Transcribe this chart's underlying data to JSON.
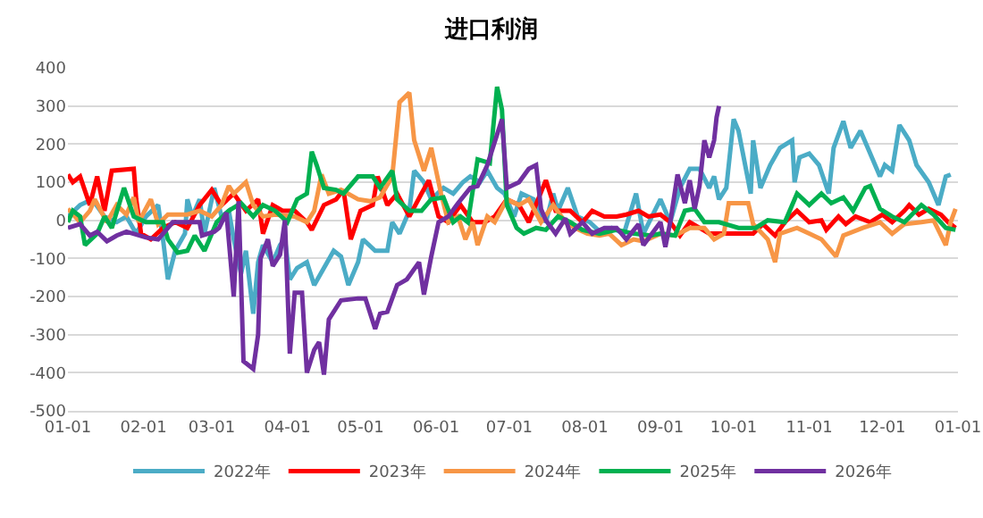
{
  "chart_data": {
    "type": "line",
    "title": "进口利润",
    "xlim": [
      "2021-01-01",
      "2022-01-01"
    ],
    "xticks": [
      {
        "value": "2021-01-01",
        "label": "01-01"
      },
      {
        "value": "2021-02-01",
        "label": "02-01"
      },
      {
        "value": "2021-03-01",
        "label": "03-01"
      },
      {
        "value": "2021-04-01",
        "label": "04-01"
      },
      {
        "value": "2021-05-01",
        "label": "05-01"
      },
      {
        "value": "2021-06-01",
        "label": "06-01"
      },
      {
        "value": "2021-07-01",
        "label": "07-01"
      },
      {
        "value": "2021-08-01",
        "label": "08-01"
      },
      {
        "value": "2021-09-01",
        "label": "09-01"
      },
      {
        "value": "2021-10-01",
        "label": "10-01"
      },
      {
        "value": "2021-11-01",
        "label": "11-01"
      },
      {
        "value": "2021-12-01",
        "label": "12-01"
      },
      {
        "value": "2022-01-01",
        "label": "01-01"
      }
    ],
    "ylim": [
      -500,
      400
    ],
    "yticks": [
      -500,
      -400,
      -300,
      -200,
      -100,
      0,
      100,
      200,
      300,
      400
    ],
    "grid": "y",
    "legend": "bottom",
    "marker": "none",
    "line_style": "solid",
    "series": [
      {
        "name": "2022年",
        "color": "#4bacc6",
        "x": [
          "2021-01-01",
          "2021-01-06",
          "2021-01-11",
          "2021-01-16",
          "2021-01-21",
          "2021-01-25",
          "2021-01-29",
          "2021-02-02",
          "2021-02-07",
          "2021-02-09",
          "2021-02-11",
          "2021-02-14",
          "2021-02-18",
          "2021-02-19",
          "2021-02-21",
          "2021-02-24",
          "2021-02-26",
          "2021-03-02",
          "2021-03-05",
          "2021-03-08",
          "2021-03-10",
          "2021-03-13",
          "2021-03-15",
          "2021-03-18",
          "2021-03-20",
          "2021-03-22",
          "2021-03-26",
          "2021-03-29",
          "2021-03-31",
          "2021-04-02",
          "2021-04-05",
          "2021-04-09",
          "2021-04-12",
          "2021-04-16",
          "2021-04-20",
          "2021-04-23",
          "2021-04-26",
          "2021-04-30",
          "2021-05-02",
          "2021-05-07",
          "2021-05-12",
          "2021-05-14",
          "2021-05-17",
          "2021-05-21",
          "2021-05-23",
          "2021-05-27",
          "2021-05-30",
          "2021-06-04",
          "2021-06-08",
          "2021-06-12",
          "2021-06-15",
          "2021-06-19",
          "2021-06-22",
          "2021-06-26",
          "2021-06-29",
          "2021-07-03",
          "2021-07-06",
          "2021-07-11",
          "2021-07-16",
          "2021-07-19",
          "2021-07-21",
          "2021-07-25",
          "2021-07-29",
          "2021-08-03",
          "2021-08-08",
          "2021-08-12",
          "2021-08-17",
          "2021-08-22",
          "2021-08-25",
          "2021-09-01",
          "2021-09-05",
          "2021-09-09",
          "2021-09-13",
          "2021-09-17",
          "2021-09-21",
          "2021-09-23",
          "2021-09-25",
          "2021-09-28",
          "2021-10-01",
          "2021-10-03",
          "2021-10-08",
          "2021-10-09",
          "2021-10-12",
          "2021-10-16",
          "2021-10-20",
          "2021-10-25",
          "2021-10-26",
          "2021-10-28",
          "2021-11-01",
          "2021-11-05",
          "2021-11-09",
          "2021-11-11",
          "2021-11-15",
          "2021-11-18",
          "2021-11-22",
          "2021-11-25",
          "2021-11-30",
          "2021-12-02",
          "2021-12-05",
          "2021-12-08",
          "2021-12-12",
          "2021-12-15",
          "2021-12-20",
          "2021-12-24",
          "2021-12-27",
          "2021-12-29"
        ],
        "values": [
          10,
          40,
          55,
          10,
          -5,
          10,
          -35,
          10,
          40,
          -50,
          -155,
          -80,
          -35,
          55,
          10,
          55,
          -35,
          85,
          10,
          25,
          -50,
          -140,
          -80,
          -245,
          -110,
          -65,
          -110,
          -65,
          -50,
          -155,
          -125,
          -110,
          -170,
          -125,
          -80,
          -95,
          -170,
          -110,
          -50,
          -80,
          -80,
          -5,
          -35,
          25,
          130,
          100,
          55,
          85,
          70,
          100,
          115,
          100,
          130,
          85,
          70,
          10,
          70,
          55,
          -5,
          70,
          25,
          85,
          10,
          -5,
          -35,
          -20,
          -35,
          70,
          -35,
          55,
          -5,
          85,
          135,
          135,
          85,
          115,
          55,
          85,
          265,
          235,
          70,
          210,
          85,
          145,
          190,
          210,
          100,
          165,
          175,
          145,
          70,
          190,
          260,
          190,
          235,
          190,
          115,
          145,
          130,
          250,
          210,
          145,
          100,
          40,
          115,
          120
        ]
      },
      {
        "name": "2023年",
        "color": "#ff0000",
        "x": [
          "2021-01-01",
          "2021-01-03",
          "2021-01-06",
          "2021-01-10",
          "2021-01-13",
          "2021-01-16",
          "2021-01-19",
          "2021-01-28",
          "2021-01-29",
          "2021-01-31",
          "2021-02-04",
          "2021-02-09",
          "2021-02-14",
          "2021-02-19",
          "2021-02-24",
          "2021-03-01",
          "2021-03-05",
          "2021-03-10",
          "2021-03-15",
          "2021-03-20",
          "2021-03-22",
          "2021-03-26",
          "2021-03-30",
          "2021-04-04",
          "2021-04-09",
          "2021-04-11",
          "2021-04-16",
          "2021-04-21",
          "2021-04-24",
          "2021-04-27",
          "2021-05-01",
          "2021-05-06",
          "2021-05-08",
          "2021-05-12",
          "2021-05-16",
          "2021-05-21",
          "2021-05-26",
          "2021-05-29",
          "2021-06-02",
          "2021-06-06",
          "2021-06-11",
          "2021-06-16",
          "2021-06-21",
          "2021-06-25",
          "2021-06-30",
          "2021-07-05",
          "2021-07-09",
          "2021-07-16",
          "2021-07-20",
          "2021-07-26",
          "2021-07-31",
          "2021-08-04",
          "2021-08-09",
          "2021-08-14",
          "2021-08-18",
          "2021-08-23",
          "2021-08-27",
          "2021-09-01",
          "2021-09-05",
          "2021-09-09",
          "2021-09-13",
          "2021-09-17",
          "2021-09-21",
          "2021-09-27",
          "2021-10-03",
          "2021-10-09",
          "2021-10-13",
          "2021-10-18",
          "2021-10-22",
          "2021-10-27",
          "2021-11-01",
          "2021-11-06",
          "2021-11-08",
          "2021-11-13",
          "2021-11-16",
          "2021-11-20",
          "2021-11-26",
          "2021-12-01",
          "2021-12-05",
          "2021-12-10",
          "2021-12-12",
          "2021-12-16",
          "2021-12-20",
          "2021-12-25",
          "2021-12-28",
          "2021-12-31"
        ],
        "values": [
          120,
          100,
          115,
          40,
          115,
          25,
          130,
          135,
          55,
          -35,
          -50,
          -20,
          -5,
          -20,
          40,
          80,
          40,
          70,
          25,
          55,
          -35,
          40,
          25,
          25,
          -5,
          -25,
          40,
          55,
          80,
          -50,
          25,
          40,
          115,
          40,
          70,
          10,
          70,
          105,
          10,
          -5,
          40,
          -5,
          -5,
          10,
          55,
          40,
          -5,
          105,
          25,
          25,
          -5,
          25,
          10,
          10,
          15,
          25,
          10,
          15,
          -5,
          -40,
          -5,
          -20,
          -35,
          -35,
          -35,
          -35,
          -10,
          -40,
          -5,
          25,
          -5,
          0,
          -25,
          10,
          -10,
          10,
          -5,
          15,
          -5,
          25,
          40,
          15,
          30,
          15,
          -5,
          -20
        ]
      },
      {
        "name": "2024年",
        "color": "#f79646",
        "x": [
          "2021-01-01",
          "2021-01-06",
          "2021-01-10",
          "2021-01-12",
          "2021-01-17",
          "2021-01-21",
          "2021-01-25",
          "2021-01-28",
          "2021-01-30",
          "2021-02-04",
          "2021-02-07",
          "2021-02-11",
          "2021-02-19",
          "2021-02-24",
          "2021-03-01",
          "2021-03-05",
          "2021-03-08",
          "2021-03-10",
          "2021-03-15",
          "2021-03-18",
          "2021-03-22",
          "2021-03-27",
          "2021-04-04",
          "2021-04-09",
          "2021-04-12",
          "2021-04-15",
          "2021-04-18",
          "2021-04-23",
          "2021-04-30",
          "2021-05-05",
          "2021-05-09",
          "2021-05-14",
          "2021-05-17",
          "2021-05-21",
          "2021-05-23",
          "2021-05-27",
          "2021-05-30",
          "2021-06-03",
          "2021-06-06",
          "2021-06-10",
          "2021-06-13",
          "2021-06-16",
          "2021-06-18",
          "2021-06-22",
          "2021-06-25",
          "2021-06-30",
          "2021-07-05",
          "2021-07-09",
          "2021-07-14",
          "2021-07-19",
          "2021-07-24",
          "2021-07-28",
          "2021-08-02",
          "2021-08-07",
          "2021-08-11",
          "2021-08-16",
          "2021-08-21",
          "2021-08-25",
          "2021-09-01",
          "2021-09-07",
          "2021-09-13",
          "2021-09-19",
          "2021-09-23",
          "2021-09-27",
          "2021-09-29",
          "2021-10-07",
          "2021-10-09",
          "2021-10-15",
          "2021-10-18",
          "2021-10-20",
          "2021-10-27",
          "2021-11-01",
          "2021-11-06",
          "2021-11-12",
          "2021-11-15",
          "2021-11-23",
          "2021-11-30",
          "2021-12-05",
          "2021-12-10",
          "2021-12-17",
          "2021-12-22",
          "2021-12-27",
          "2021-12-29",
          "2021-12-31"
        ],
        "values": [
          30,
          -5,
          25,
          55,
          -5,
          40,
          15,
          60,
          -5,
          55,
          -10,
          15,
          15,
          25,
          10,
          40,
          90,
          70,
          100,
          40,
          10,
          15,
          10,
          -5,
          25,
          120,
          70,
          80,
          55,
          50,
          60,
          115,
          310,
          335,
          210,
          130,
          190,
          70,
          -5,
          10,
          -50,
          -5,
          -65,
          10,
          -5,
          55,
          40,
          55,
          -5,
          40,
          -5,
          -20,
          -35,
          -40,
          -35,
          -65,
          -50,
          -55,
          -35,
          -40,
          -20,
          -20,
          -50,
          -35,
          45,
          45,
          -10,
          -50,
          -110,
          -35,
          -20,
          -35,
          -50,
          -95,
          -40,
          -20,
          -5,
          -35,
          -10,
          -5,
          0,
          -65,
          -5,
          30
        ]
      },
      {
        "name": "2025年",
        "color": "#00b050",
        "x": [
          "2021-01-01",
          "2021-01-03",
          "2021-01-06",
          "2021-01-08",
          "2021-01-13",
          "2021-01-16",
          "2021-01-19",
          "2021-01-24",
          "2021-01-28",
          "2021-02-02",
          "2021-02-09",
          "2021-02-11",
          "2021-02-15",
          "2021-02-19",
          "2021-02-22",
          "2021-02-26",
          "2021-03-03",
          "2021-03-08",
          "2021-03-13",
          "2021-03-18",
          "2021-03-22",
          "2021-03-27",
          "2021-04-01",
          "2021-04-05",
          "2021-04-09",
          "2021-04-11",
          "2021-04-13",
          "2021-04-16",
          "2021-04-21",
          "2021-04-24",
          "2021-04-30",
          "2021-05-06",
          "2021-05-09",
          "2021-05-14",
          "2021-05-16",
          "2021-05-21",
          "2021-05-26",
          "2021-05-30",
          "2021-06-04",
          "2021-06-08",
          "2021-06-11",
          "2021-06-14",
          "2021-06-18",
          "2021-06-23",
          "2021-06-26",
          "2021-06-28",
          "2021-06-30",
          "2021-07-04",
          "2021-07-07",
          "2021-07-12",
          "2021-07-16",
          "2021-07-21",
          "2021-07-26",
          "2021-07-31",
          "2021-08-07",
          "2021-08-14",
          "2021-08-21",
          "2021-08-28",
          "2021-09-01",
          "2021-09-07",
          "2021-09-11",
          "2021-09-15",
          "2021-09-19",
          "2021-09-25",
          "2021-10-03",
          "2021-10-10",
          "2021-10-15",
          "2021-10-22",
          "2021-10-27",
          "2021-11-01",
          "2021-11-06",
          "2021-11-10",
          "2021-11-15",
          "2021-11-19",
          "2021-11-24",
          "2021-11-26",
          "2021-11-30",
          "2021-12-05",
          "2021-12-10",
          "2021-12-17",
          "2021-12-22",
          "2021-12-27",
          "2021-12-31"
        ],
        "values": [
          -5,
          25,
          10,
          -65,
          -35,
          10,
          -20,
          85,
          10,
          -5,
          -5,
          -50,
          -85,
          -80,
          -40,
          -80,
          -5,
          25,
          45,
          10,
          40,
          25,
          -5,
          55,
          70,
          180,
          145,
          85,
          80,
          70,
          115,
          115,
          85,
          130,
          55,
          25,
          25,
          55,
          60,
          -5,
          10,
          -5,
          160,
          150,
          350,
          290,
          40,
          -20,
          -35,
          -20,
          -25,
          10,
          -5,
          -25,
          -35,
          -25,
          -35,
          -40,
          -35,
          -40,
          25,
          30,
          -5,
          -5,
          -20,
          -20,
          0,
          -5,
          70,
          40,
          70,
          45,
          60,
          25,
          85,
          90,
          30,
          10,
          -5,
          40,
          15,
          -20,
          -25
        ]
      },
      {
        "name": "2026年",
        "color": "#7030a0",
        "x": [
          "2021-01-01",
          "2021-01-06",
          "2021-01-10",
          "2021-01-13",
          "2021-01-17",
          "2021-01-21",
          "2021-01-25",
          "2021-02-02",
          "2021-02-07",
          "2021-02-13",
          "2021-02-24",
          "2021-02-25",
          "2021-03-02",
          "2021-03-04",
          "2021-03-07",
          "2021-03-10",
          "2021-03-12",
          "2021-03-14",
          "2021-03-18",
          "2021-03-20",
          "2021-03-21",
          "2021-03-24",
          "2021-03-26",
          "2021-03-29",
          "2021-03-31",
          "2021-04-02",
          "2021-04-04",
          "2021-04-07",
          "2021-04-09",
          "2021-04-12",
          "2021-04-14",
          "2021-04-16",
          "2021-04-18",
          "2021-04-23",
          "2021-04-30",
          "2021-05-03",
          "2021-05-07",
          "2021-05-09",
          "2021-05-12",
          "2021-05-16",
          "2021-05-20",
          "2021-05-25",
          "2021-05-27",
          "2021-05-30",
          "2021-06-02",
          "2021-06-06",
          "2021-06-10",
          "2021-06-15",
          "2021-06-18",
          "2021-06-22",
          "2021-06-28",
          "2021-06-30",
          "2021-07-05",
          "2021-07-09",
          "2021-07-12",
          "2021-07-14",
          "2021-07-16",
          "2021-07-20",
          "2021-07-24",
          "2021-07-26",
          "2021-07-31",
          "2021-08-04",
          "2021-08-09",
          "2021-08-14",
          "2021-08-18",
          "2021-08-23",
          "2021-08-25",
          "2021-09-01",
          "2021-09-03",
          "2021-09-05",
          "2021-09-08",
          "2021-09-11",
          "2021-09-13",
          "2021-09-15",
          "2021-09-17",
          "2021-09-19",
          "2021-09-21",
          "2021-09-23",
          "2021-09-24",
          "2021-09-25"
        ],
        "values": [
          -20,
          -10,
          -40,
          -30,
          -55,
          -40,
          -30,
          -45,
          -50,
          -5,
          -5,
          -40,
          -30,
          -20,
          20,
          -200,
          50,
          -370,
          -390,
          -300,
          -100,
          -50,
          -120,
          -90,
          0,
          -350,
          -190,
          -190,
          -400,
          -340,
          -320,
          -405,
          -260,
          -210,
          -205,
          -205,
          -285,
          -245,
          -240,
          -170,
          -155,
          -110,
          -195,
          -95,
          -5,
          10,
          45,
          85,
          90,
          145,
          265,
          85,
          100,
          135,
          145,
          30,
          0,
          -35,
          5,
          -35,
          -5,
          -35,
          -20,
          -20,
          -50,
          -10,
          -65,
          -5,
          -70,
          -5,
          120,
          45,
          105,
          30,
          90,
          210,
          165,
          210,
          270,
          300
        ]
      }
    ]
  }
}
